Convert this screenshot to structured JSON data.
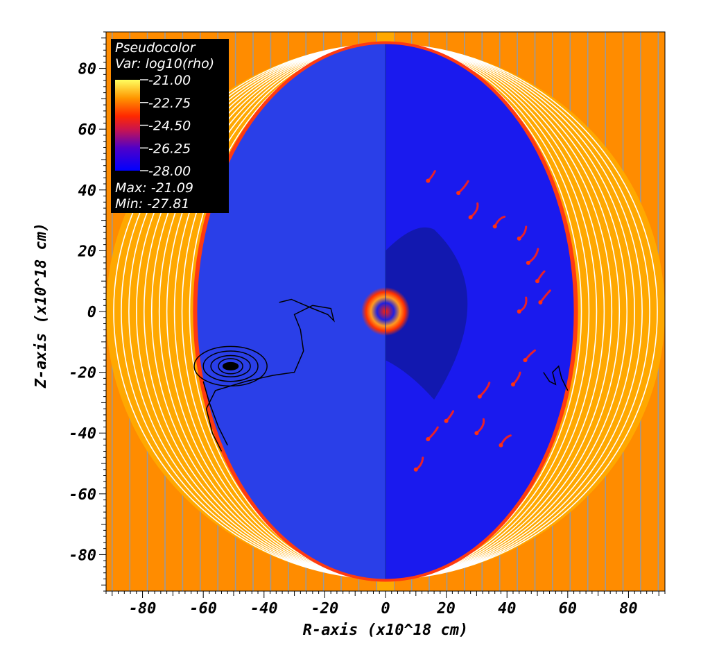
{
  "chart_data": {
    "type": "heatmap",
    "xlabel": "R-axis (x10^18 cm)",
    "ylabel": "Z-axis (x10^18 cm)",
    "xlim": [
      -92,
      92
    ],
    "ylim": [
      -92,
      92
    ],
    "x_ticks": [
      -80,
      -60,
      -40,
      -20,
      0,
      20,
      40,
      60,
      80
    ],
    "y_ticks": [
      -80,
      -60,
      -40,
      -20,
      0,
      20,
      40,
      60,
      80
    ],
    "colormap": [
      "#0000ff",
      "#5000c8",
      "#c81450",
      "#ff2800",
      "#ff9600",
      "#ffff60"
    ],
    "legend": {
      "line1": "Pseudocolor",
      "line2": "Var: log10(rho)",
      "colorbar_values": [
        "-21.00",
        "-22.75",
        "-24.50",
        "-26.25",
        "-28.00"
      ],
      "max_label": "Max: -21.09",
      "min_label": "Min: -27.81",
      "placement": "top-left"
    },
    "background_value_color": "#ff8c00",
    "halo_color": "#ffa800",
    "bubble_color_left": "#2a3fe8",
    "bubble_color_right": "#1a1aee",
    "bubble_semi_axes": [
      62,
      88
    ],
    "halo_semi_axes": [
      92,
      88
    ]
  }
}
